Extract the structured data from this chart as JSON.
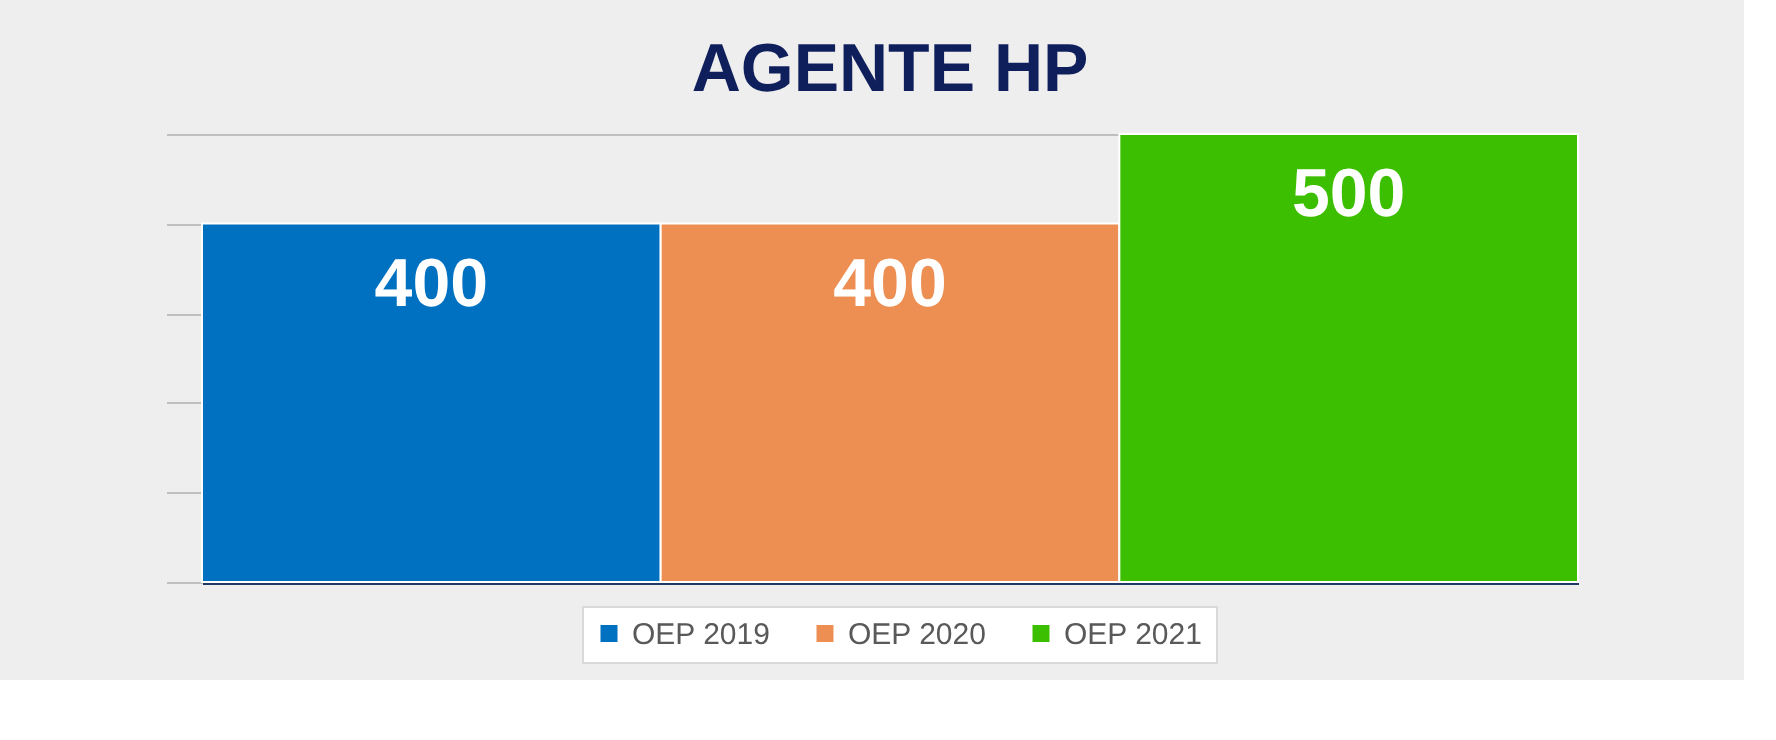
{
  "chart_data": {
    "type": "bar",
    "title": "AGENTE HP",
    "categories": [
      null
    ],
    "series": [
      {
        "name": "OEP 2019",
        "color": "#0070c0",
        "values": [
          400
        ]
      },
      {
        "name": "OEP 2020",
        "color": "#ed8f52",
        "values": [
          400
        ]
      },
      {
        "name": "OEP 2021",
        "color": "#3cbf00",
        "values": [
          500
        ]
      }
    ],
    "ylim": [
      0,
      500
    ],
    "grid": "y",
    "legend": "bottom",
    "data_labels": true,
    "tick_labels": false
  }
}
